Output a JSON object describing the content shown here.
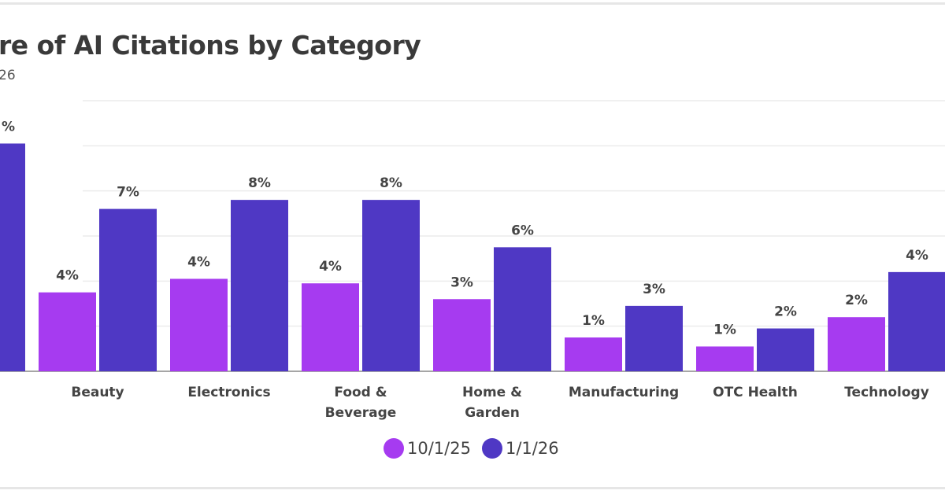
{
  "chart_data": {
    "type": "bar",
    "title": "re of AI Citations by Category",
    "subtitle": "26",
    "categories": [
      "",
      "Beauty",
      "Electronics",
      "Food &\nBeverage",
      "Home &\nGarden",
      "Manufacturing",
      "OTC Health",
      "Technology"
    ],
    "series": [
      {
        "name": "10/1/25",
        "color": "#a63bf0",
        "values": [
          null,
          3.5,
          4.1,
          3.9,
          3.2,
          1.5,
          1.1,
          2.4
        ],
        "labels": [
          "",
          "4%",
          "4%",
          "4%",
          "3%",
          "1%",
          "1%",
          "2%"
        ]
      },
      {
        "name": "1/1/26",
        "color": "#4f38c4",
        "values": [
          10.1,
          7.2,
          7.6,
          7.6,
          5.5,
          2.9,
          1.9,
          4.4
        ],
        "labels": [
          "%",
          "7%",
          "8%",
          "8%",
          "6%",
          "3%",
          "2%",
          "4%"
        ]
      }
    ],
    "ylim": [
      0,
      12
    ],
    "grid": true,
    "legend": "bottom"
  }
}
